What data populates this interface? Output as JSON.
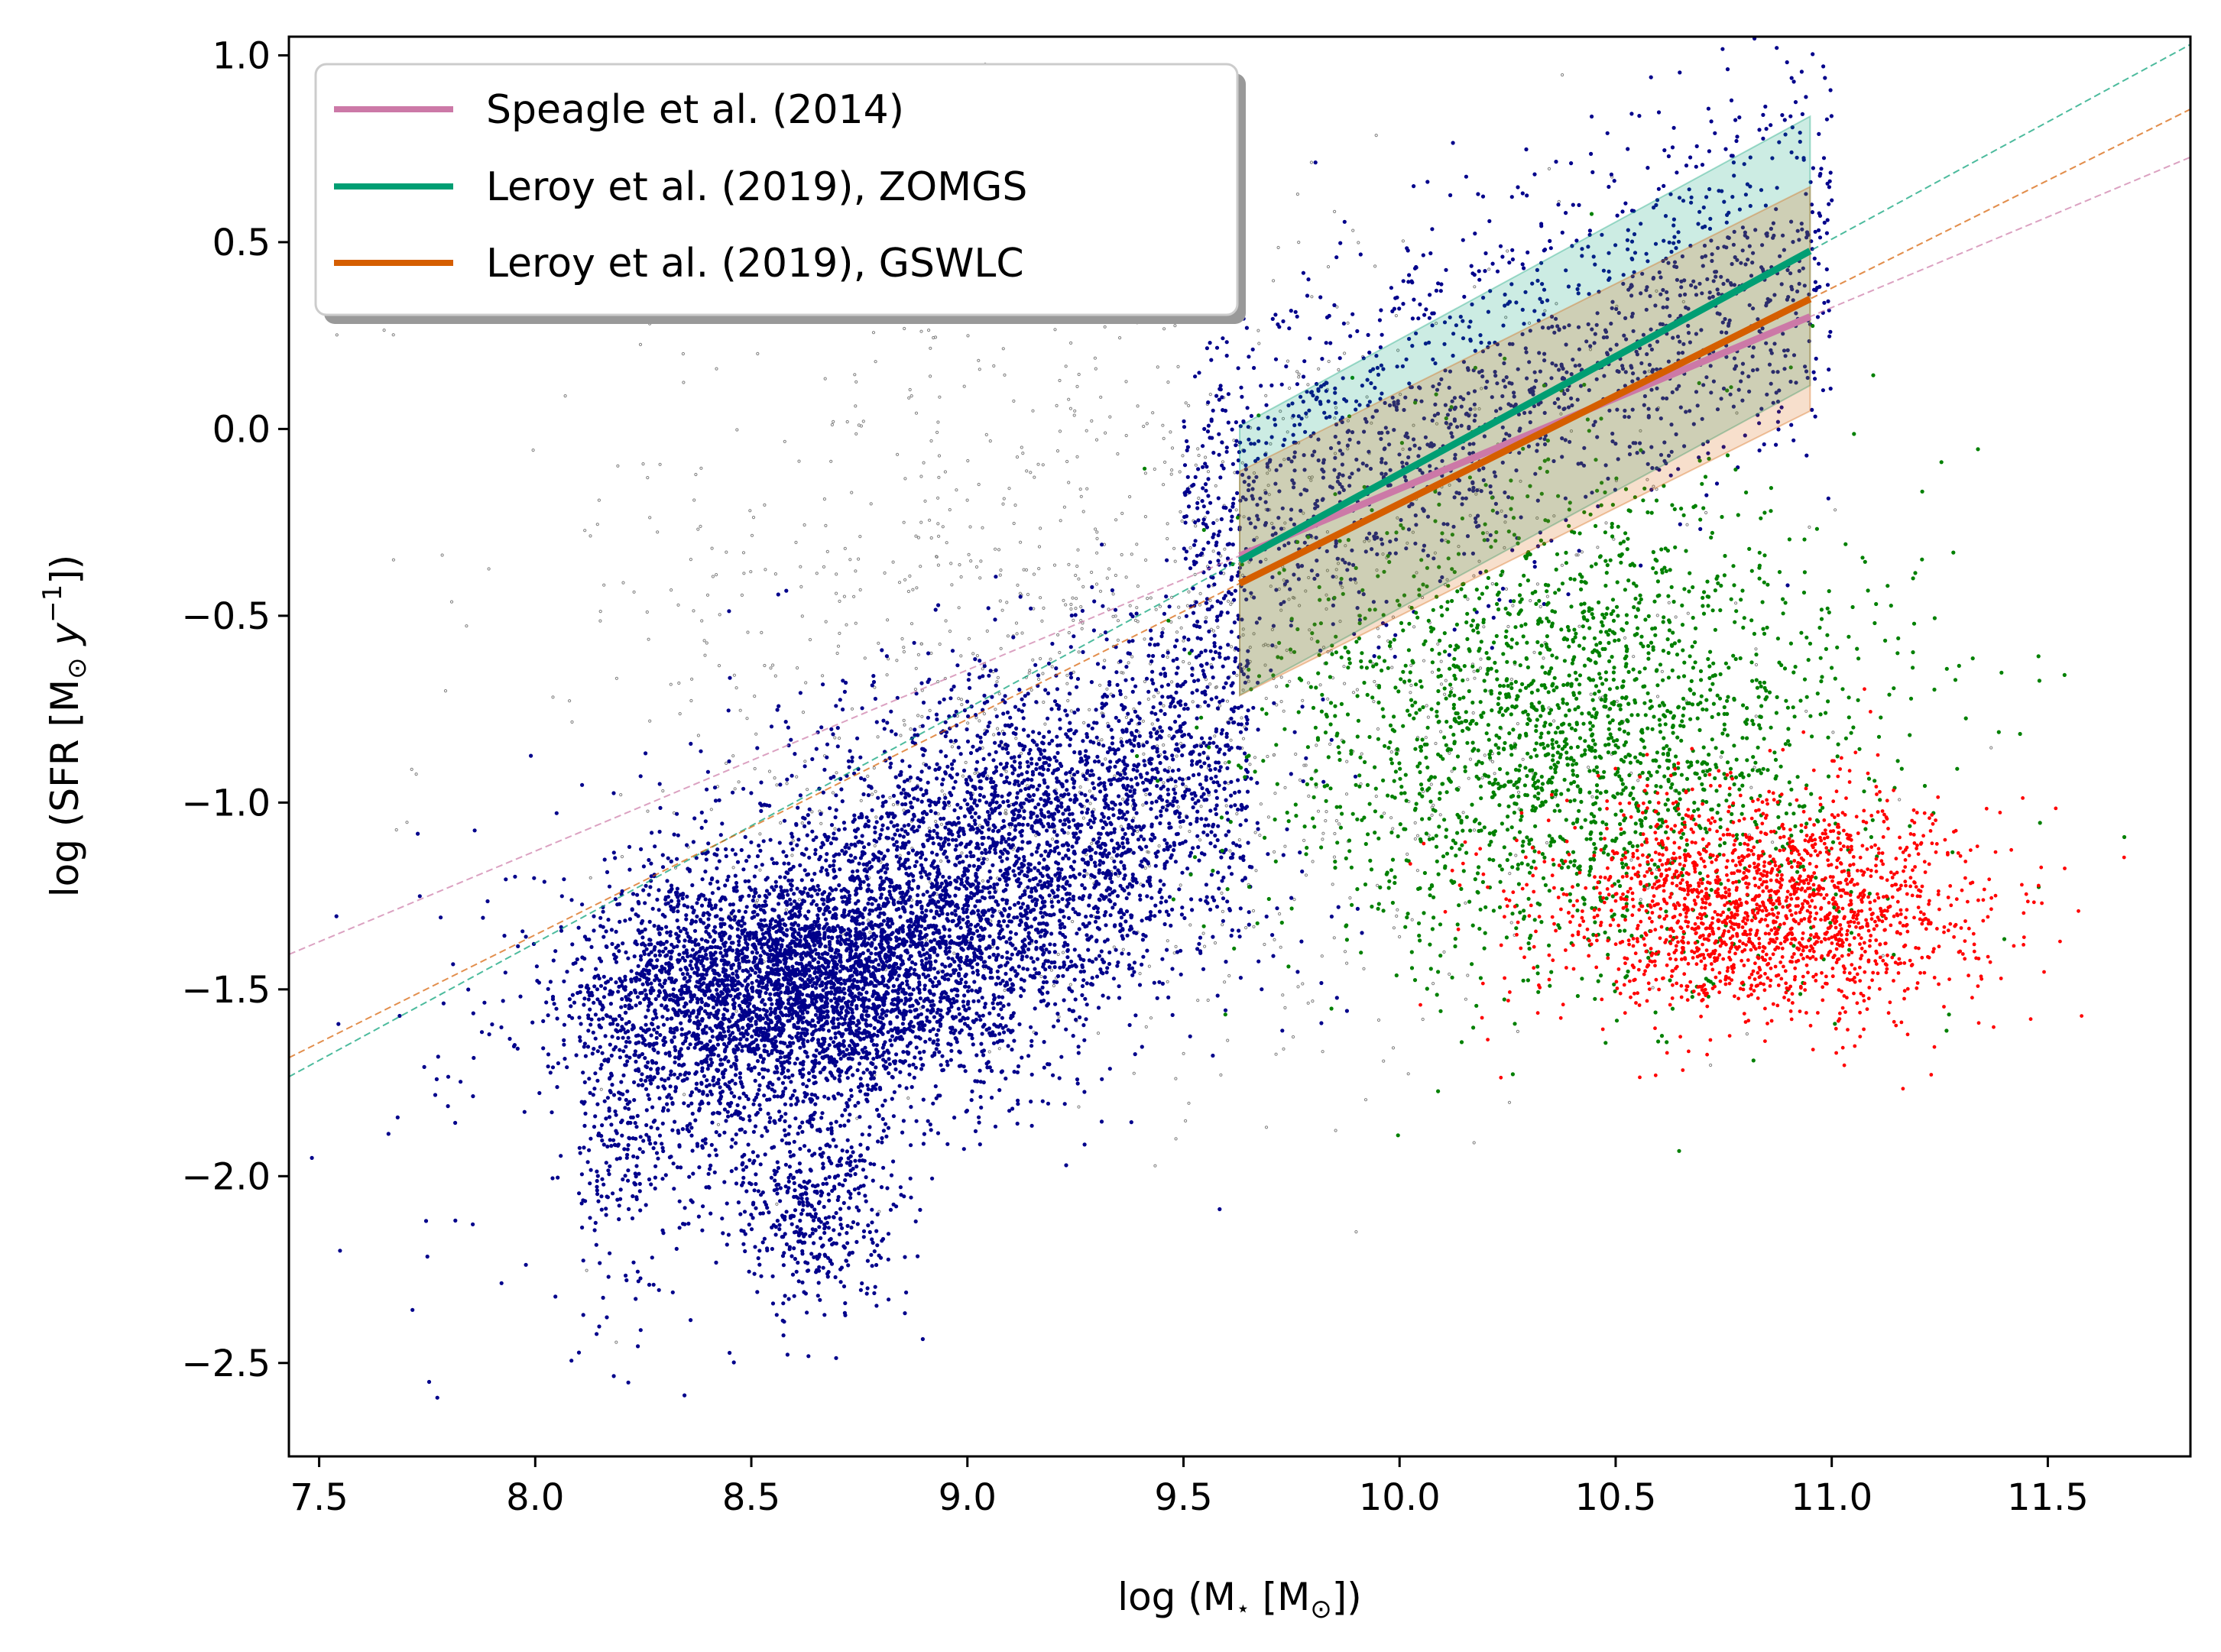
{
  "chart_data": {
    "type": "scatter",
    "title": "",
    "xlabel_parts": {
      "pre": "log (M",
      "sub": "⋆",
      "mid": " [M",
      "sun": "⊙",
      "post": "])"
    },
    "ylabel_parts": {
      "pre": "log (SFR [M",
      "sun": "⊙",
      "space": " ",
      "yvar": "y",
      "sup": "−1",
      "post": "])"
    },
    "xlim": [
      7.43,
      11.83
    ],
    "ylim": [
      -2.75,
      1.05
    ],
    "xticks": [
      7.5,
      8.0,
      8.5,
      9.0,
      9.5,
      10.0,
      10.5,
      11.0,
      11.5
    ],
    "yticks": [
      1.0,
      0.5,
      0.0,
      -0.5,
      -1.0,
      -1.5,
      -2.0,
      -2.5
    ],
    "xtick_labels": [
      "7.5",
      "8.0",
      "8.5",
      "9.0",
      "9.5",
      "10.0",
      "10.5",
      "11.0",
      "11.5"
    ],
    "ytick_labels": [
      "1.0",
      "0.5",
      "0.0",
      "−0.5",
      "−1.0",
      "−1.5",
      "−2.0",
      "−2.5"
    ],
    "legend_position": "top-left",
    "fits": [
      {
        "name": "Speagle et al. (2014)",
        "color": "#cc79a7",
        "slope": 0.485,
        "intercept": -5.01,
        "solid_range": [
          9.63,
          10.95
        ],
        "band_halfwidth": 0.0
      },
      {
        "name": "Leroy et al. (2019), ZOMGS",
        "color": "#009e73",
        "slope": 0.628,
        "intercept": -6.4,
        "solid_range": [
          9.63,
          10.95
        ],
        "band_halfwidth": 0.36
      },
      {
        "name": "Leroy et al. (2019), GSWLC",
        "color": "#d55e00",
        "slope": 0.577,
        "intercept": -5.97,
        "solid_range": [
          9.63,
          10.95
        ],
        "band_halfwidth": 0.3
      }
    ],
    "scatter_groups": [
      {
        "name": "star-forming-low",
        "color": "#00008b",
        "n": 3200,
        "type": "gauss",
        "cx": 8.6,
        "cy": -1.48,
        "sx": 0.25,
        "sy": 0.16,
        "r": 2.6,
        "seed": 11
      },
      {
        "name": "star-forming-main",
        "color": "#00008b",
        "n": 2600,
        "type": "line",
        "x0": 8.1,
        "x1": 9.65,
        "slope": 0.72,
        "intercept": -7.7,
        "sy": 0.23,
        "r": 2.6,
        "seed": 12
      },
      {
        "name": "star-forming-dense",
        "color": "#00008b",
        "n": 1800,
        "type": "gauss",
        "cx": 9.1,
        "cy": -1.15,
        "sx": 0.28,
        "sy": 0.25,
        "r": 2.6,
        "seed": 13
      },
      {
        "name": "star-forming-spur",
        "color": "#00008b",
        "n": 450,
        "type": "gauss",
        "cx": 8.65,
        "cy": -2.1,
        "sx": 0.1,
        "sy": 0.14,
        "r": 2.6,
        "seed": 14
      },
      {
        "name": "star-forming-high",
        "color": "#00008b",
        "n": 1700,
        "type": "line",
        "x0": 9.5,
        "x1": 11.0,
        "slope": 0.5,
        "intercept": -5.0,
        "sy": 0.25,
        "r": 2.6,
        "seed": 15
      },
      {
        "name": "star-forming-outliers",
        "color": "#00008b",
        "n": 160,
        "type": "gauss",
        "cx": 8.3,
        "cy": -1.7,
        "sx": 0.35,
        "sy": 0.45,
        "r": 2.6,
        "seed": 16
      },
      {
        "name": "green-valley",
        "color": "#008000",
        "n": 2300,
        "type": "gauss",
        "cx": 10.4,
        "cy": -0.8,
        "sx": 0.35,
        "sy": 0.33,
        "r": 2.6,
        "seed": 21
      },
      {
        "name": "quiescent",
        "color": "#ff0000",
        "n": 1900,
        "type": "gauss",
        "cx": 10.85,
        "cy": -1.28,
        "sx": 0.25,
        "sy": 0.15,
        "r": 2.4,
        "seed": 31
      },
      {
        "name": "unclassified",
        "color": "#7f7f7f",
        "n": 1400,
        "type": "gauss",
        "cx": 9.4,
        "cy": -0.6,
        "sx": 0.6,
        "sy": 0.55,
        "r": 1.6,
        "hollow": true,
        "seed": 41
      }
    ]
  }
}
